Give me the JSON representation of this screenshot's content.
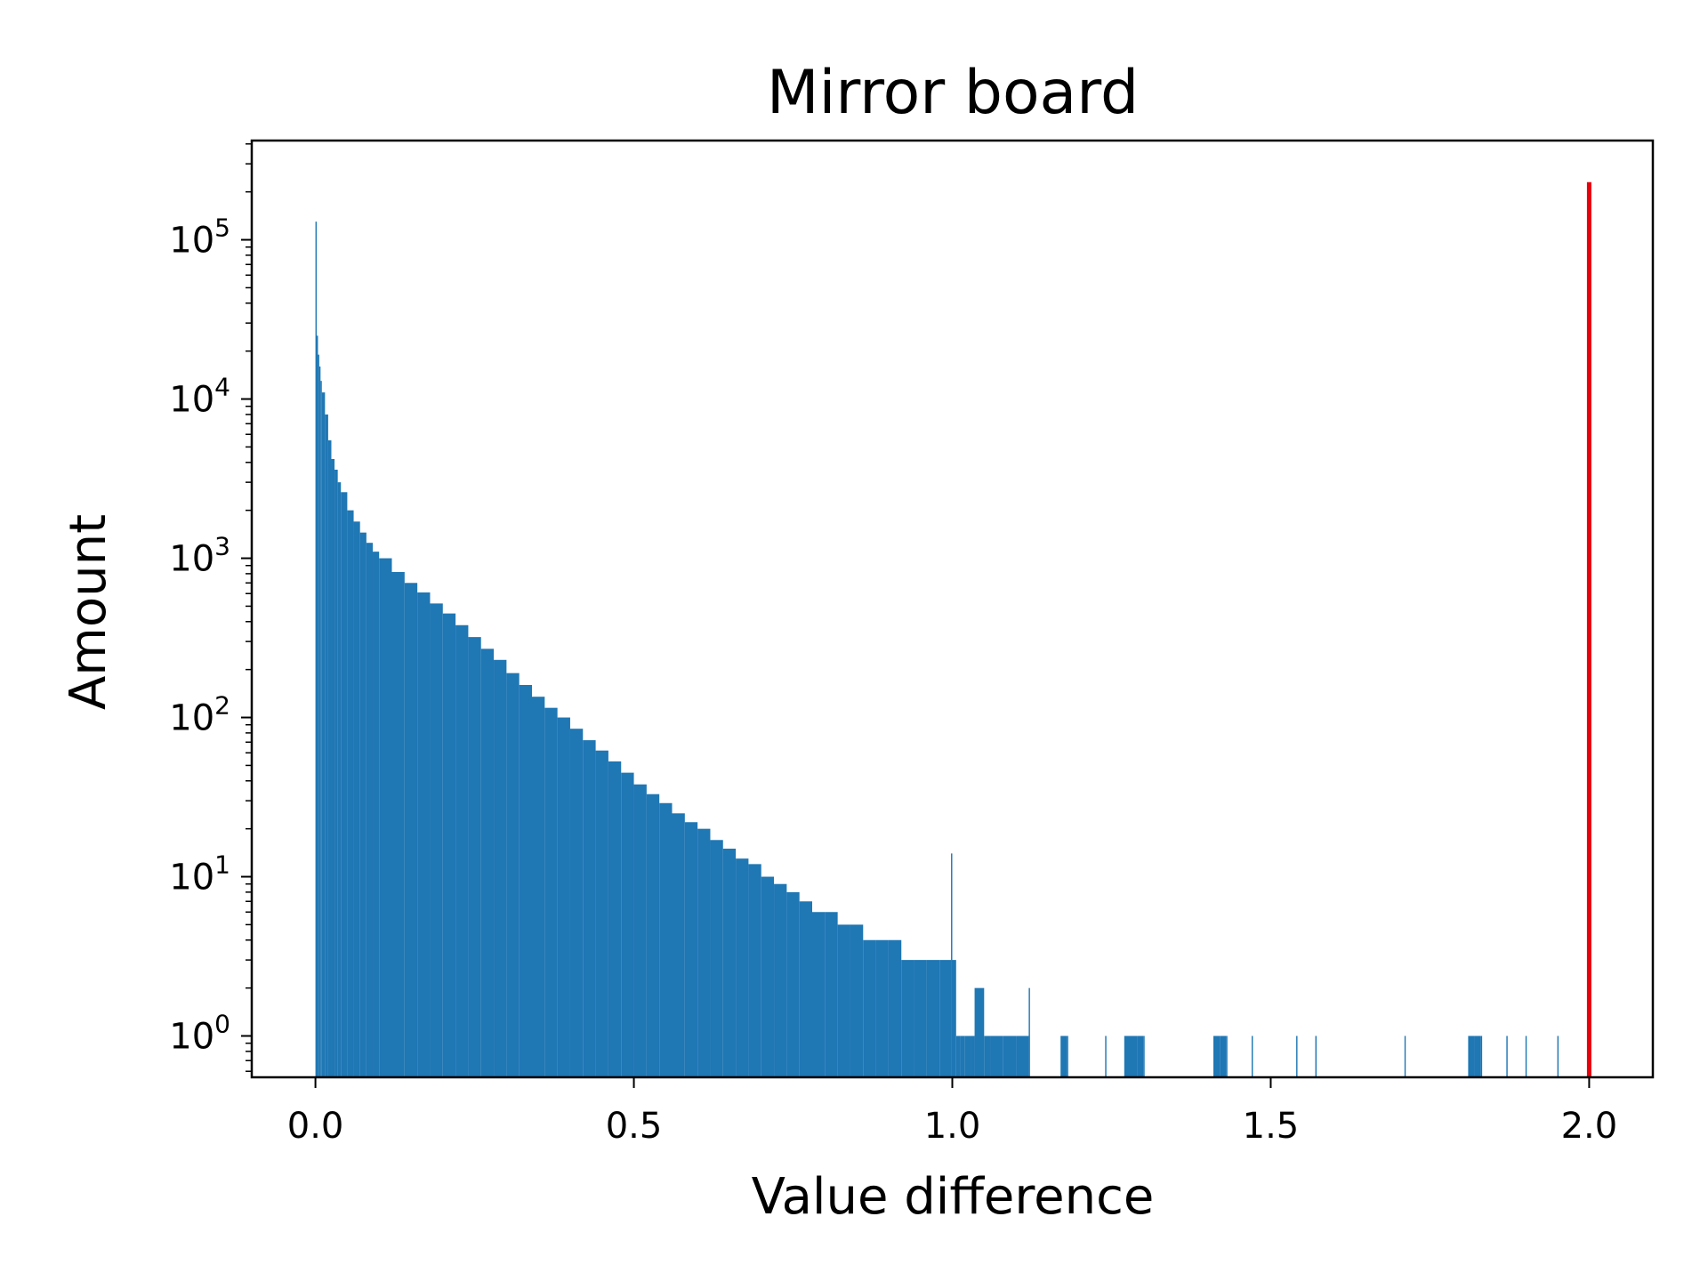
{
  "chart_data": {
    "type": "bar",
    "title": "Mirror board",
    "xlabel": "Value difference",
    "ylabel": "Amount",
    "xlim": [
      -0.1,
      2.1
    ],
    "ylim": [
      0.55,
      420000
    ],
    "yscale": "log",
    "grid": false,
    "legend": "none",
    "colors": {
      "bars": "#1f77b4",
      "marker_line": "#e8000b",
      "axes": "#000000"
    },
    "xticks": [
      0.0,
      0.5,
      1.0,
      1.5,
      2.0
    ],
    "xtick_labels": [
      "0.0",
      "0.5",
      "1.0",
      "1.5",
      "2.0"
    ],
    "yticks": [
      {
        "value": 1,
        "base": "10",
        "exp": "0"
      },
      {
        "value": 10,
        "base": "10",
        "exp": "1"
      },
      {
        "value": 100,
        "base": "10",
        "exp": "2"
      },
      {
        "value": 1000,
        "base": "10",
        "exp": "3"
      },
      {
        "value": 10000,
        "base": "10",
        "exp": "4"
      },
      {
        "value": 100000,
        "base": "10",
        "exp": "5"
      }
    ],
    "bin_width": 0.002,
    "bins": [
      {
        "x": 0.0,
        "y": 130000
      },
      {
        "x": 0.002,
        "y": 25000
      },
      {
        "x": 0.004,
        "y": 19000
      },
      {
        "x": 0.006,
        "y": 16000
      },
      {
        "x": 0.008,
        "y": 13000
      },
      {
        "x": 0.01,
        "y": 11000
      },
      {
        "x": 0.015,
        "y": 8000
      },
      {
        "x": 0.02,
        "y": 5500
      },
      {
        "x": 0.025,
        "y": 4200
      },
      {
        "x": 0.03,
        "y": 3600
      },
      {
        "x": 0.035,
        "y": 3000
      },
      {
        "x": 0.04,
        "y": 2600
      },
      {
        "x": 0.05,
        "y": 2000
      },
      {
        "x": 0.06,
        "y": 1700
      },
      {
        "x": 0.07,
        "y": 1450
      },
      {
        "x": 0.08,
        "y": 1250
      },
      {
        "x": 0.09,
        "y": 1100
      },
      {
        "x": 0.1,
        "y": 1000
      },
      {
        "x": 0.12,
        "y": 820
      },
      {
        "x": 0.14,
        "y": 700
      },
      {
        "x": 0.16,
        "y": 610
      },
      {
        "x": 0.18,
        "y": 520
      },
      {
        "x": 0.2,
        "y": 450
      },
      {
        "x": 0.22,
        "y": 380
      },
      {
        "x": 0.24,
        "y": 320
      },
      {
        "x": 0.26,
        "y": 270
      },
      {
        "x": 0.28,
        "y": 230
      },
      {
        "x": 0.3,
        "y": 190
      },
      {
        "x": 0.32,
        "y": 160
      },
      {
        "x": 0.34,
        "y": 135
      },
      {
        "x": 0.36,
        "y": 115
      },
      {
        "x": 0.38,
        "y": 100
      },
      {
        "x": 0.4,
        "y": 85
      },
      {
        "x": 0.42,
        "y": 72
      },
      {
        "x": 0.44,
        "y": 62
      },
      {
        "x": 0.46,
        "y": 53
      },
      {
        "x": 0.48,
        "y": 45
      },
      {
        "x": 0.5,
        "y": 38
      },
      {
        "x": 0.52,
        "y": 33
      },
      {
        "x": 0.54,
        "y": 29
      },
      {
        "x": 0.56,
        "y": 25
      },
      {
        "x": 0.58,
        "y": 22
      },
      {
        "x": 0.6,
        "y": 20
      },
      {
        "x": 0.62,
        "y": 17
      },
      {
        "x": 0.64,
        "y": 15
      },
      {
        "x": 0.66,
        "y": 13
      },
      {
        "x": 0.68,
        "y": 12
      },
      {
        "x": 0.7,
        "y": 10
      },
      {
        "x": 0.72,
        "y": 9
      },
      {
        "x": 0.74,
        "y": 8
      },
      {
        "x": 0.76,
        "y": 7
      },
      {
        "x": 0.78,
        "y": 6
      },
      {
        "x": 0.8,
        "y": 6
      },
      {
        "x": 0.82,
        "y": 5
      },
      {
        "x": 0.84,
        "y": 5
      },
      {
        "x": 0.86,
        "y": 4
      },
      {
        "x": 0.88,
        "y": 4
      },
      {
        "x": 0.9,
        "y": 4
      },
      {
        "x": 0.92,
        "y": 3
      },
      {
        "x": 0.94,
        "y": 3
      },
      {
        "x": 0.96,
        "y": 3
      },
      {
        "x": 0.98,
        "y": 3
      },
      {
        "x": 0.998,
        "y": 14
      },
      {
        "x": 1.0,
        "y": 3
      },
      {
        "x": 1.006,
        "y": 1
      },
      {
        "x": 1.012,
        "y": 1
      },
      {
        "x": 1.02,
        "y": 1
      },
      {
        "x": 1.03,
        "y": 1
      },
      {
        "x": 1.035,
        "y": 2
      },
      {
        "x": 1.05,
        "y": 1
      },
      {
        "x": 1.06,
        "y": 1
      },
      {
        "x": 1.08,
        "y": 1
      },
      {
        "x": 1.1,
        "y": 1
      },
      {
        "x": 1.12,
        "y": 2
      },
      {
        "x": 1.17,
        "y": 1
      },
      {
        "x": 1.18,
        "y": 1
      },
      {
        "x": 1.24,
        "y": 1
      },
      {
        "x": 1.27,
        "y": 1
      },
      {
        "x": 1.29,
        "y": 1
      },
      {
        "x": 1.3,
        "y": 1
      },
      {
        "x": 1.41,
        "y": 1
      },
      {
        "x": 1.42,
        "y": 1
      },
      {
        "x": 1.43,
        "y": 1
      },
      {
        "x": 1.47,
        "y": 1
      },
      {
        "x": 1.54,
        "y": 1
      },
      {
        "x": 1.57,
        "y": 1
      },
      {
        "x": 1.71,
        "y": 1
      },
      {
        "x": 1.81,
        "y": 1
      },
      {
        "x": 1.82,
        "y": 1
      },
      {
        "x": 1.83,
        "y": 1
      },
      {
        "x": 1.87,
        "y": 1
      },
      {
        "x": 1.9,
        "y": 1
      },
      {
        "x": 1.95,
        "y": 1
      }
    ],
    "vertical_line": {
      "x": 2.0,
      "y_top": 230000
    }
  }
}
